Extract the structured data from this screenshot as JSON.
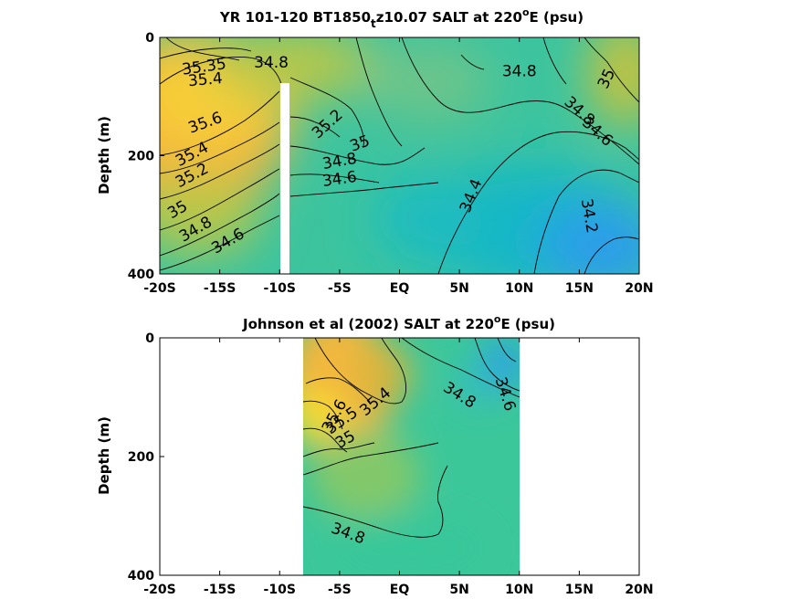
{
  "chart_data": [
    {
      "type": "heatmap",
      "title_parts": [
        "YR 101-120 BT1850",
        "t",
        "z10.07 SALT at 220",
        "o",
        "E (psu)"
      ],
      "ylabel": "Depth (m)",
      "xticks": [
        "-20S",
        "-15S",
        "-10S",
        "-5S",
        "EQ",
        "5N",
        "10N",
        "15N",
        "20N"
      ],
      "xtick_values": [
        -20,
        -15,
        -10,
        -5,
        0,
        5,
        10,
        15,
        20
      ],
      "yticks": [
        "0",
        "200",
        "400"
      ],
      "ytick_values": [
        0,
        200,
        400
      ],
      "xlim": [
        -20,
        20
      ],
      "ylim": [
        400,
        0
      ],
      "data_extent_lat": [
        -20,
        20
      ],
      "gap_lat": [
        -10.1,
        -9.3
      ],
      "gap_depth": [
        80,
        400
      ],
      "colorscale_psu": [
        34.0,
        35.7
      ],
      "contour_labels": [
        {
          "text": "35.35",
          "lat": -16.3,
          "depth": 50,
          "angle": -8
        },
        {
          "text": "34.8",
          "lat": -10.7,
          "depth": 43,
          "angle": 0
        },
        {
          "text": "35.4",
          "lat": -16.2,
          "depth": 72,
          "angle": -5
        },
        {
          "text": "35.6",
          "lat": -16.2,
          "depth": 145,
          "angle": -20
        },
        {
          "text": "35.4",
          "lat": -17.3,
          "depth": 198,
          "angle": -28
        },
        {
          "text": "35.2",
          "lat": -17.3,
          "depth": 234,
          "angle": -28
        },
        {
          "text": "35",
          "lat": -18.5,
          "depth": 292,
          "angle": -30
        },
        {
          "text": "34.8",
          "lat": -17.0,
          "depth": 325,
          "angle": -30
        },
        {
          "text": "34.6",
          "lat": -14.3,
          "depth": 345,
          "angle": -30
        },
        {
          "text": "35.2",
          "lat": -6.0,
          "depth": 147,
          "angle": -42
        },
        {
          "text": "35",
          "lat": -3.3,
          "depth": 180,
          "angle": -20
        },
        {
          "text": "34.8",
          "lat": -5.0,
          "depth": 210,
          "angle": -10
        },
        {
          "text": "34.6",
          "lat": -5.0,
          "depth": 240,
          "angle": -8
        },
        {
          "text": "34.8",
          "lat": 10.0,
          "depth": 58,
          "angle": 0
        },
        {
          "text": "35",
          "lat": 17.3,
          "depth": 70,
          "angle": -65
        },
        {
          "text": "34.8",
          "lat": 15.0,
          "depth": 125,
          "angle": 42
        },
        {
          "text": "34.6",
          "lat": 16.5,
          "depth": 160,
          "angle": 42
        },
        {
          "text": "34.4",
          "lat": 6.0,
          "depth": 268,
          "angle": -68
        },
        {
          "text": "34.2",
          "lat": 15.8,
          "depth": 302,
          "angle": 80
        }
      ]
    },
    {
      "type": "heatmap",
      "title_parts": [
        "Johnson et al (2002) SALT at 220",
        "o",
        "E (psu)"
      ],
      "ylabel": "Depth (m)",
      "xticks": [
        "-20S",
        "-15S",
        "-10S",
        "-5S",
        "EQ",
        "5N",
        "10N",
        "15N",
        "20N"
      ],
      "xtick_values": [
        -20,
        -15,
        -10,
        -5,
        0,
        5,
        10,
        15,
        20
      ],
      "yticks": [
        "0",
        "200",
        "400"
      ],
      "ytick_values": [
        0,
        200,
        400
      ],
      "xlim": [
        -20,
        20
      ],
      "ylim": [
        400,
        0
      ],
      "data_extent_lat": [
        -8,
        10
      ],
      "colorscale_psu": [
        34.0,
        35.7
      ],
      "contour_labels": [
        {
          "text": "35.4",
          "lat": -2.0,
          "depth": 108,
          "angle": -40
        },
        {
          "text": "35.6",
          "lat": -5.4,
          "depth": 132,
          "angle": -62
        },
        {
          "text": "35.5",
          "lat": -4.8,
          "depth": 140,
          "angle": -35
        },
        {
          "text": "35",
          "lat": -4.5,
          "depth": 172,
          "angle": -30
        },
        {
          "text": "34.8",
          "lat": 5.0,
          "depth": 97,
          "angle": 32
        },
        {
          "text": "34.6",
          "lat": 8.8,
          "depth": 95,
          "angle": 72
        },
        {
          "text": "34.8",
          "lat": -4.3,
          "depth": 330,
          "angle": 20
        }
      ]
    }
  ]
}
